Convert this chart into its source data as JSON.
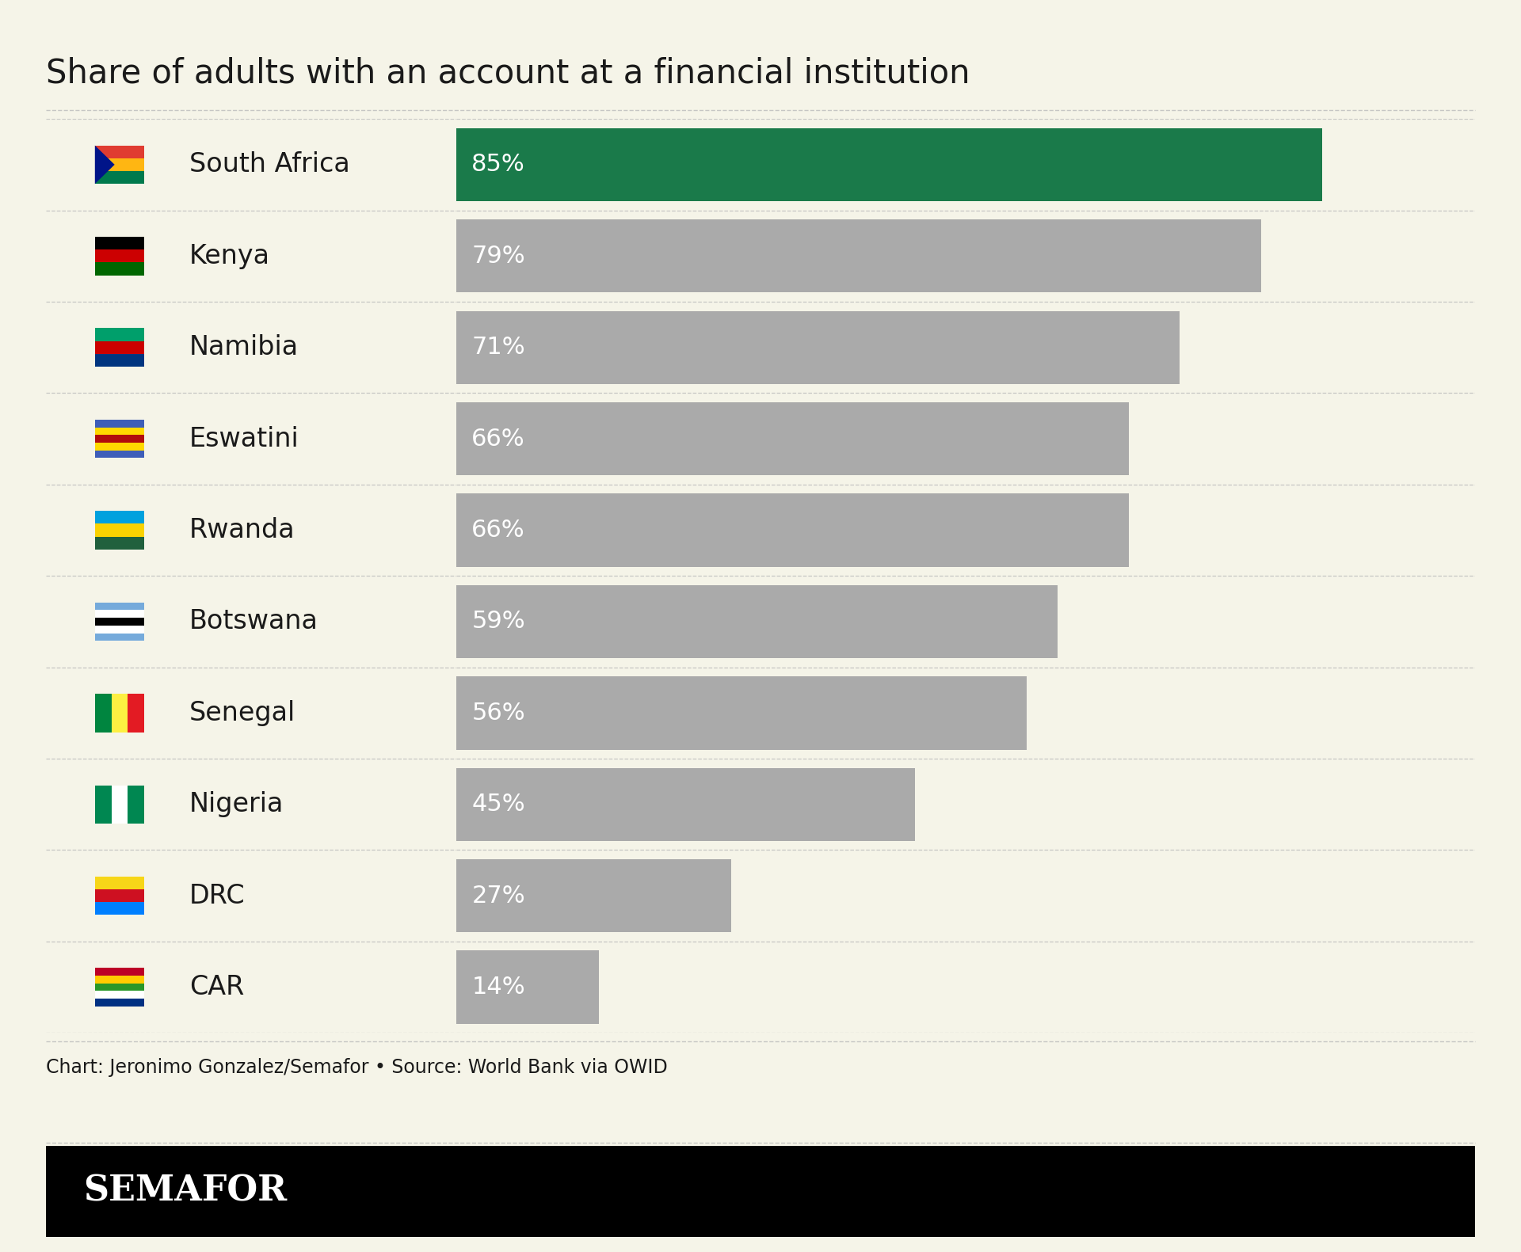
{
  "title": "Share of adults with an account at a financial institution",
  "countries": [
    "South Africa",
    "Kenya",
    "Namibia",
    "Eswatini",
    "Rwanda",
    "Botswana",
    "Senegal",
    "Nigeria",
    "DRC",
    "CAR"
  ],
  "values": [
    85,
    79,
    71,
    66,
    66,
    59,
    56,
    45,
    27,
    14
  ],
  "bar_color_highlight": "#1a7a4a",
  "bar_color_normal": "#aaaaaa",
  "background_color": "#f5f4e8",
  "text_color": "#1a1a1a",
  "source_text": "Chart: Jeronimo Gonzalez/Semafor • Source: World Bank via OWID",
  "semafor_text": "SEMAFOR",
  "semafor_bg": "#000000",
  "semafor_fg": "#ffffff",
  "label_color": "#ffffff",
  "separator_color": "#bbbbbb",
  "title_fontsize": 30,
  "label_fontsize": 22,
  "country_fontsize": 24,
  "source_fontsize": 17,
  "semafor_fontsize": 32,
  "xlim": [
    0,
    100
  ],
  "flag_colors": {
    "South Africa": [
      [
        "#007A4D",
        "#FFB612",
        "#001489",
        "#E03C31",
        "#FFFFFF",
        "#000000"
      ]
    ],
    "Kenya": [
      [
        "#006600",
        "#CC0001",
        "#000000",
        "#FFFFFF"
      ]
    ],
    "Namibia": [
      [
        "#003580",
        "#CC0000",
        "#009F6B",
        "#FFFFFF",
        "#FFD700"
      ]
    ],
    "Eswatini": [
      [
        "#3E5EB9",
        "#FFD900",
        "#B10C0C",
        "#FFFFFF"
      ]
    ],
    "Rwanda": [
      [
        "#20603D",
        "#FAD201",
        "#00A1DE"
      ]
    ],
    "Botswana": [
      [
        "#75AADB",
        "#FFFFFF",
        "#000000"
      ]
    ],
    "Senegal": [
      [
        "#00853F",
        "#FDEF42",
        "#E31B23"
      ]
    ],
    "Nigeria": [
      [
        "#008751",
        "#FFFFFF"
      ]
    ],
    "DRC": [
      [
        "#007FFF",
        "#CE1021",
        "#F7D618"
      ]
    ],
    "CAR": [
      [
        "#003082",
        "#FFFFFF",
        "#289728",
        "#FFCB00",
        "#BC0026"
      ]
    ]
  }
}
